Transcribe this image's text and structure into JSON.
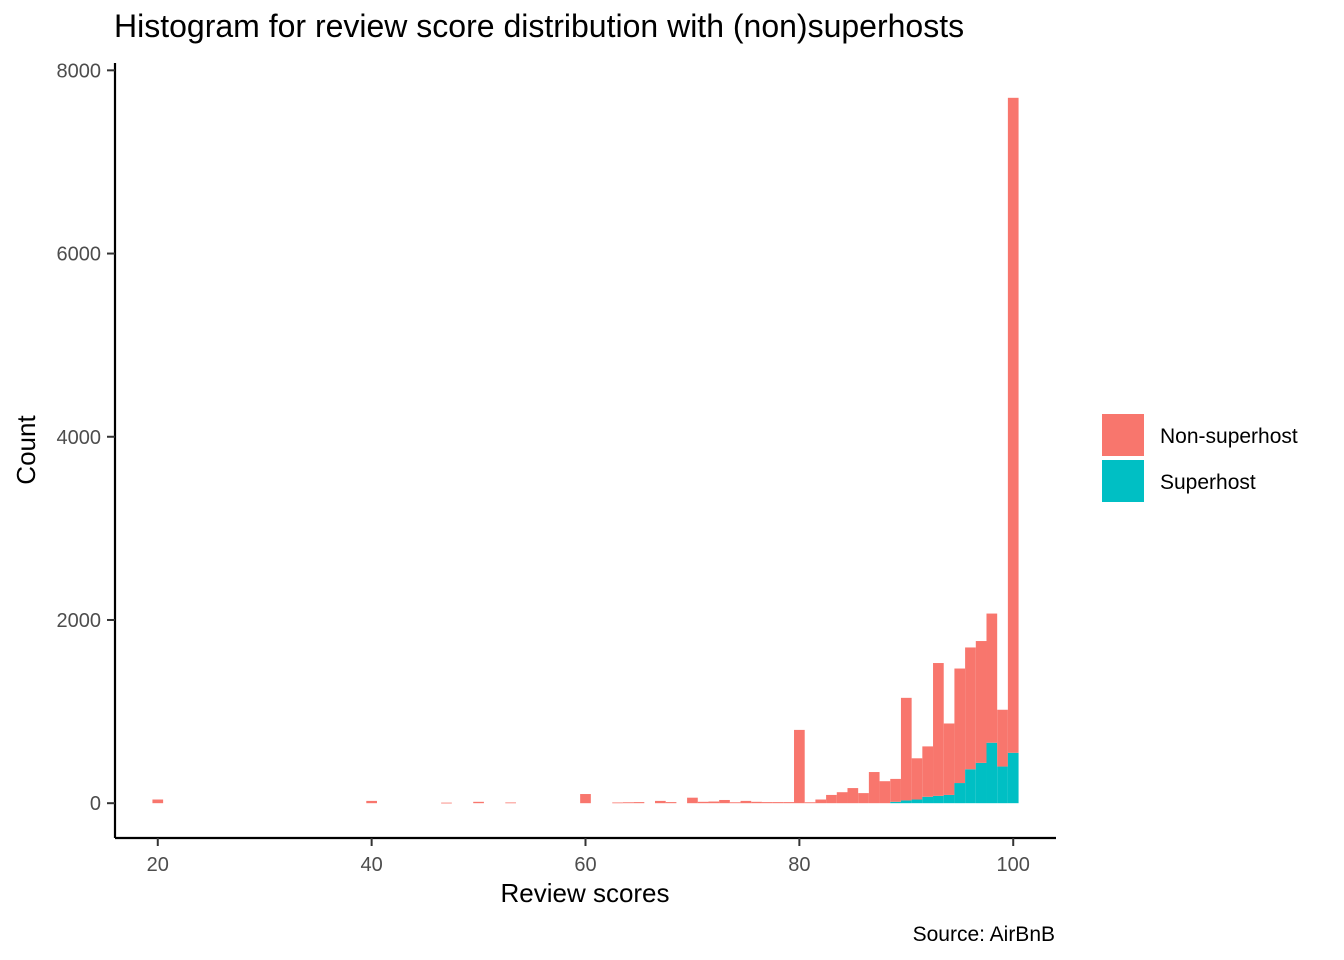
{
  "chart_data": {
    "type": "bar",
    "stacked": true,
    "title": "Histogram for review score distribution with (non)superhosts",
    "xlabel": "Review scores",
    "ylabel": "Count",
    "caption": "Source: AirBnB",
    "xlim": [
      16,
      104
    ],
    "ylim": [
      -380,
      8080
    ],
    "x_ticks": [
      20,
      40,
      60,
      80,
      100
    ],
    "y_ticks": [
      0,
      2000,
      4000,
      6000,
      8000
    ],
    "grid": false,
    "legend_position": "right",
    "binwidth": 1,
    "x": [
      20,
      40,
      47,
      50,
      53,
      60,
      63,
      64,
      65,
      67,
      68,
      70,
      71,
      72,
      73,
      74,
      75,
      76,
      77,
      78,
      79,
      80,
      81,
      82,
      83,
      84,
      85,
      86,
      87,
      88,
      89,
      90,
      91,
      92,
      93,
      94,
      95,
      96,
      97,
      98,
      99,
      100
    ],
    "series": [
      {
        "name": "Non-superhost",
        "color": "#F8766D",
        "values": [
          40,
          25,
          6,
          15,
          8,
          100,
          8,
          10,
          12,
          25,
          12,
          60,
          15,
          18,
          35,
          10,
          25,
          15,
          12,
          12,
          12,
          800,
          10,
          40,
          90,
          120,
          165,
          110,
          340,
          240,
          250,
          1120,
          450,
          550,
          1450,
          780,
          1250,
          1330,
          1330,
          1410,
          620,
          7150
        ]
      },
      {
        "name": "Superhost",
        "color": "#00BFC4",
        "values": [
          0,
          0,
          0,
          0,
          0,
          0,
          0,
          0,
          0,
          0,
          0,
          0,
          0,
          0,
          0,
          0,
          0,
          0,
          0,
          0,
          0,
          0,
          0,
          0,
          0,
          0,
          0,
          0,
          0,
          0,
          15,
          30,
          40,
          70,
          80,
          90,
          220,
          370,
          440,
          660,
          400,
          550
        ]
      }
    ]
  }
}
